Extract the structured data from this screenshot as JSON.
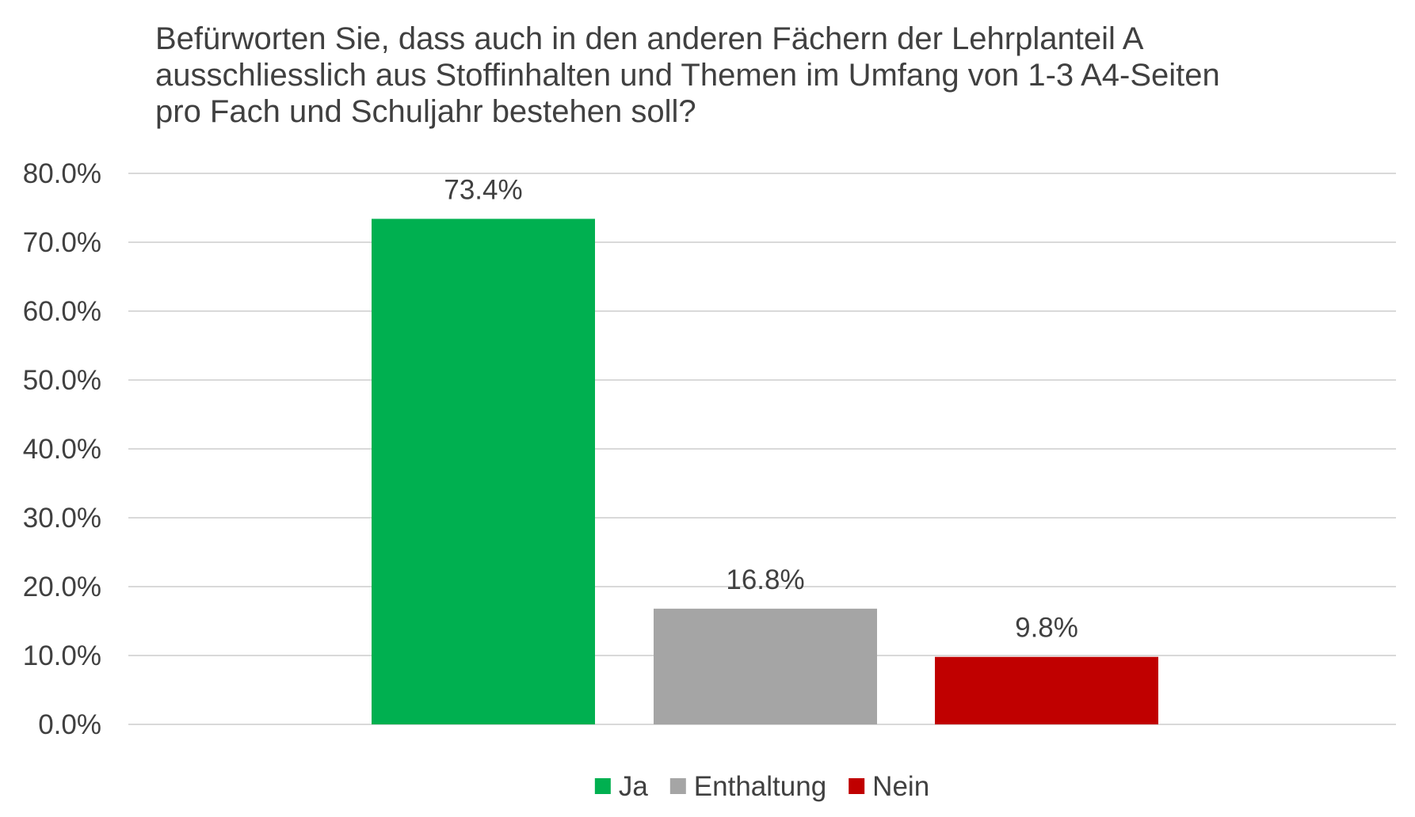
{
  "chart_data": {
    "type": "bar",
    "title_lines": [
      "Befürworten Sie, dass auch in den anderen Fächern der Lehrplanteil A",
      "ausschliesslich aus Stoffinhalten und Themen im Umfang von 1-3 A4-Seiten",
      "pro Fach und Schuljahr bestehen soll?"
    ],
    "series": [
      {
        "name": "Ja",
        "value": 73.4,
        "label": "73.4%",
        "color": "#00B050"
      },
      {
        "name": "Enthaltung",
        "value": 16.8,
        "label": "16.8%",
        "color": "#A5A5A5"
      },
      {
        "name": "Nein",
        "value": 9.8,
        "label": "9.8%",
        "color": "#C00000"
      }
    ],
    "ylim": [
      0,
      80
    ],
    "yticks": [
      {
        "value": 0,
        "label": "0.0%"
      },
      {
        "value": 10,
        "label": "10.0%"
      },
      {
        "value": 20,
        "label": "20.0%"
      },
      {
        "value": 30,
        "label": "30.0%"
      },
      {
        "value": 40,
        "label": "40.0%"
      },
      {
        "value": 50,
        "label": "50.0%"
      },
      {
        "value": 60,
        "label": "60.0%"
      },
      {
        "value": 70,
        "label": "70.0%"
      },
      {
        "value": 80,
        "label": "80.0%"
      }
    ],
    "grid": true,
    "gridline_color": "#D9D9D9",
    "legend_position": "bottom"
  }
}
